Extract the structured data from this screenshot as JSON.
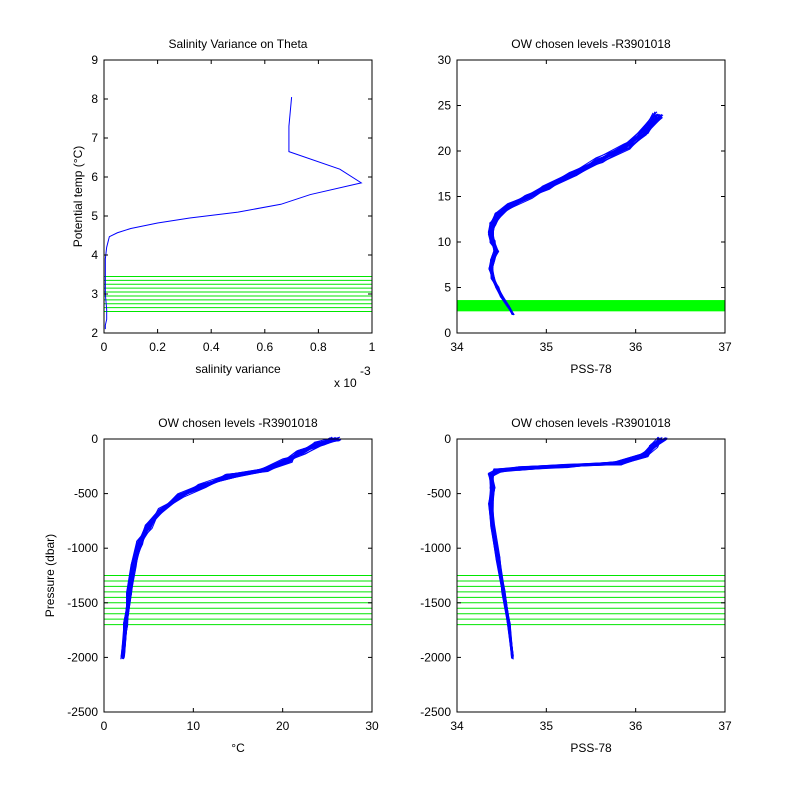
{
  "colors": {
    "profile": "#0000ff",
    "levels": "#00e600",
    "levels_band": "#00ff00",
    "axes": "#000000"
  },
  "chart_data": [
    {
      "type": "line",
      "title": "Salinity Variance on Theta",
      "xlabel": "salinity variance",
      "ylabel": "Potential temp (°C)",
      "x_exponent_label": "x 10",
      "x_exponent_power": "-3",
      "xlim": [
        0,
        1
      ],
      "ylim": [
        2,
        9
      ],
      "xticks": [
        "0",
        "0.2",
        "0.4",
        "0.6",
        "0.8",
        "1"
      ],
      "yticks": [
        "2",
        "3",
        "4",
        "5",
        "6",
        "7",
        "8",
        "9"
      ],
      "series": [
        {
          "x": [
            0.7,
            0.69,
            0.69,
            0.88,
            0.96,
            0.77,
            0.66,
            0.5,
            0.32,
            0.2,
            0.1,
            0.05,
            0.02,
            0.01,
            0.005,
            0.005,
            0.005,
            0.01,
            0.01,
            0.005,
            0.005
          ],
          "y": [
            8.05,
            7.3,
            6.65,
            6.2,
            5.85,
            5.55,
            5.3,
            5.1,
            4.95,
            4.82,
            4.68,
            4.57,
            4.47,
            4.2,
            3.9,
            3.6,
            3.0,
            2.6,
            2.35,
            2.2,
            2.1
          ]
        }
      ],
      "levels_y": [
        2.55,
        2.65,
        2.75,
        2.85,
        2.95,
        3.05,
        3.15,
        3.25,
        3.35,
        3.45
      ],
      "grid": false
    },
    {
      "type": "line",
      "title": "OW chosen levels -R3901018",
      "xlabel": "PSS-78",
      "ylabel": "",
      "xlim": [
        34,
        37
      ],
      "ylim": [
        0,
        30
      ],
      "xticks": [
        "34",
        "35",
        "36",
        "37"
      ],
      "yticks": [
        "0",
        "5",
        "10",
        "15",
        "20",
        "25",
        "30"
      ],
      "series": [
        {
          "x": [
            34.63,
            34.57,
            34.5,
            34.45,
            34.4,
            34.38,
            34.4,
            34.44,
            34.4,
            34.38,
            34.4,
            34.46,
            34.6,
            34.8,
            35.0,
            35.3,
            35.6,
            35.9,
            36.1,
            36.25
          ],
          "y": [
            2.0,
            3.0,
            4.0,
            5.0,
            6.0,
            7.0,
            8.0,
            9.0,
            10.0,
            11.0,
            12.0,
            13.0,
            14.0,
            15.0,
            16.0,
            17.5,
            19.0,
            20.5,
            22.0,
            24.0
          ]
        }
      ],
      "levels_y": [
        2.6,
        2.8,
        3.0,
        3.2,
        3.4
      ],
      "grid": false
    },
    {
      "type": "line",
      "title": "OW chosen levels -R3901018",
      "xlabel": "°C",
      "ylabel": "Pressure (dbar)",
      "xlim": [
        0,
        30
      ],
      "ylim": [
        -2500,
        0
      ],
      "xticks": [
        "0",
        "10",
        "20",
        "30"
      ],
      "yticks": [
        "-2500",
        "-2000",
        "-1500",
        "-1000",
        "-500",
        "0"
      ],
      "series": [
        {
          "x": [
            2.1,
            2.4,
            2.8,
            3.3,
            4.0,
            5.0,
            6.5,
            8.5,
            11.0,
            14.0,
            18.0,
            20.5,
            22.0,
            24.0,
            26.0
          ],
          "y": [
            -2000,
            -1700,
            -1400,
            -1150,
            -950,
            -800,
            -650,
            -520,
            -430,
            -340,
            -280,
            -200,
            -120,
            -40,
            0
          ]
        }
      ],
      "levels_y": [
        -1250,
        -1300,
        -1350,
        -1400,
        -1450,
        -1500,
        -1550,
        -1600,
        -1650,
        -1700
      ],
      "grid": false
    },
    {
      "type": "line",
      "title": "OW chosen levels -R3901018",
      "xlabel": "PSS-78",
      "ylabel": "",
      "xlim": [
        34,
        37
      ],
      "ylim": [
        -2500,
        0
      ],
      "xticks": [
        "34",
        "35",
        "36",
        "37"
      ],
      "yticks": [
        "-2500",
        "-2000",
        "-1500",
        "-1000",
        "-500",
        "0"
      ],
      "series": [
        {
          "x": [
            34.62,
            34.58,
            34.52,
            34.46,
            34.4,
            34.38,
            34.4,
            34.38,
            34.45,
            34.7,
            35.2,
            35.8,
            36.1,
            36.2,
            36.3
          ],
          "y": [
            -2000,
            -1700,
            -1400,
            -1100,
            -800,
            -600,
            -450,
            -330,
            -290,
            -270,
            -250,
            -220,
            -150,
            -60,
            0
          ]
        }
      ],
      "levels_y": [
        -1250,
        -1300,
        -1350,
        -1400,
        -1450,
        -1500,
        -1550,
        -1600,
        -1650,
        -1700
      ],
      "grid": false
    }
  ]
}
